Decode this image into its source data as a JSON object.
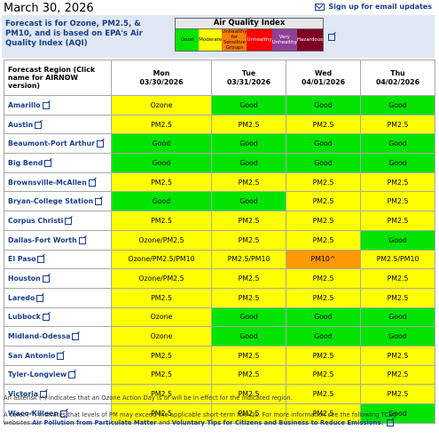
{
  "date": "March 30, 2026",
  "signup": "Sign up for email updates",
  "intro": "Forecast is for Ozone, PM2.5, & PM10, and is based on EPA's Air Quality Index (AQI)",
  "aqi": {
    "title": "Air Quality Index",
    "levels": [
      {
        "label": "Good",
        "color": "#00e400",
        "text": "#000"
      },
      {
        "label": "Moderate",
        "color": "#ffff00",
        "text": "#000"
      },
      {
        "label": "Unhealthy for Sensitive Groups",
        "color": "#ff7e00",
        "text": "#000"
      },
      {
        "label": "Unhealthy",
        "color": "#ff0000",
        "text": "#fff"
      },
      {
        "label": "Very Unhealthy",
        "color": "#8f3f97",
        "text": "#fff"
      },
      {
        "label": "Hazardous",
        "color": "#7e0023",
        "text": "#fff"
      }
    ]
  },
  "table": {
    "region_header": "Forecast Region (Click name for AIRNOW version)",
    "days": [
      {
        "day": "Mon",
        "date": "03/30/2026"
      },
      {
        "day": "Tue",
        "date": "03/31/2026"
      },
      {
        "day": "Wed",
        "date": "04/01/2026"
      },
      {
        "day": "Thu",
        "date": "04/02/2026"
      }
    ],
    "rows": [
      {
        "region": "Amarillo",
        "f": [
          "Ozone",
          "Good",
          "Good",
          "Good"
        ],
        "c": [
          "y",
          "g",
          "g",
          "g"
        ]
      },
      {
        "region": "Austin",
        "f": [
          "PM2.5",
          "PM2.5",
          "PM2.5",
          "PM2.5"
        ],
        "c": [
          "y",
          "y",
          "y",
          "y"
        ]
      },
      {
        "region": "Beaumont-Port Arthur",
        "f": [
          "Good",
          "Good",
          "Good",
          "Good"
        ],
        "c": [
          "g",
          "g",
          "g",
          "g"
        ]
      },
      {
        "region": "Big Bend",
        "f": [
          "Good",
          "Good",
          "Good",
          "Good"
        ],
        "c": [
          "g",
          "g",
          "g",
          "g"
        ]
      },
      {
        "region": "Brownsville-McAllen",
        "f": [
          "PM2.5",
          "PM2.5",
          "PM2.5",
          "PM2.5"
        ],
        "c": [
          "y",
          "y",
          "y",
          "y"
        ]
      },
      {
        "region": "Bryan-College Station",
        "f": [
          "Good",
          "Good",
          "PM2.5",
          "PM2.5"
        ],
        "c": [
          "g",
          "g",
          "y",
          "y"
        ]
      },
      {
        "region": "Corpus Christi",
        "f": [
          "PM2.5",
          "PM2.5",
          "PM2.5",
          "PM2.5"
        ],
        "c": [
          "y",
          "y",
          "y",
          "y"
        ]
      },
      {
        "region": "Dallas-Fort Worth",
        "f": [
          "Ozone/PM2.5",
          "PM2.5",
          "PM2.5",
          "Good"
        ],
        "c": [
          "y",
          "y",
          "y",
          "g"
        ]
      },
      {
        "region": "El Paso",
        "f": [
          "Ozone/PM2.5/PM10",
          "PM2.5/PM10",
          "PM10^",
          "PM2.5/PM10"
        ],
        "c": [
          "y",
          "y",
          "o",
          "y"
        ]
      },
      {
        "region": "Houston",
        "f": [
          "Ozone/PM2.5",
          "PM2.5",
          "PM2.5",
          "PM2.5"
        ],
        "c": [
          "y",
          "y",
          "y",
          "y"
        ]
      },
      {
        "region": "Laredo",
        "f": [
          "PM2.5",
          "PM2.5",
          "PM2.5",
          "PM2.5"
        ],
        "c": [
          "y",
          "y",
          "y",
          "y"
        ]
      },
      {
        "region": "Lubbock",
        "f": [
          "Ozone",
          "Good",
          "Good",
          "Good"
        ],
        "c": [
          "y",
          "g",
          "g",
          "g"
        ]
      },
      {
        "region": "Midland-Odessa",
        "f": [
          "Ozone",
          "Good",
          "Good",
          "Good"
        ],
        "c": [
          "y",
          "g",
          "g",
          "g"
        ]
      },
      {
        "region": "San Antonio",
        "f": [
          "PM2.5",
          "PM2.5",
          "PM2.5",
          "PM2.5"
        ],
        "c": [
          "y",
          "y",
          "y",
          "y"
        ]
      },
      {
        "region": "Tyler-Longview",
        "f": [
          "PM2.5",
          "PM2.5",
          "PM2.5",
          "PM2.5"
        ],
        "c": [
          "y",
          "y",
          "y",
          "y"
        ]
      },
      {
        "region": "Victoria",
        "f": [
          "PM2.5",
          "PM2.5",
          "PM2.5",
          "PM2.5"
        ],
        "c": [
          "y",
          "y",
          "y",
          "y"
        ]
      },
      {
        "region": "Waco-Killeen",
        "f": [
          "PM2.5",
          "PM2.5",
          "PM2.5",
          "Good"
        ],
        "c": [
          "y",
          "y",
          "y",
          "g"
        ]
      }
    ]
  },
  "cell_colors": {
    "g": "#00e400",
    "y": "#ffff00",
    "o": "#ff9900"
  },
  "footnote1": "An asterisk (*) indicates that an Ozone Action Day is or will be in effect for the indicated region.",
  "footnote2_pre": "A caret (^) indicates that levels of PM may exceed the applicable short-term NAAQS. For more information see the following TCEQ websites:",
  "footnote2_link1": "Air Pollution from Particulate Matter",
  "footnote2_mid": " and ",
  "footnote2_link2": "Voluntary Tips for Citizens and Business to Reduce Emissions."
}
